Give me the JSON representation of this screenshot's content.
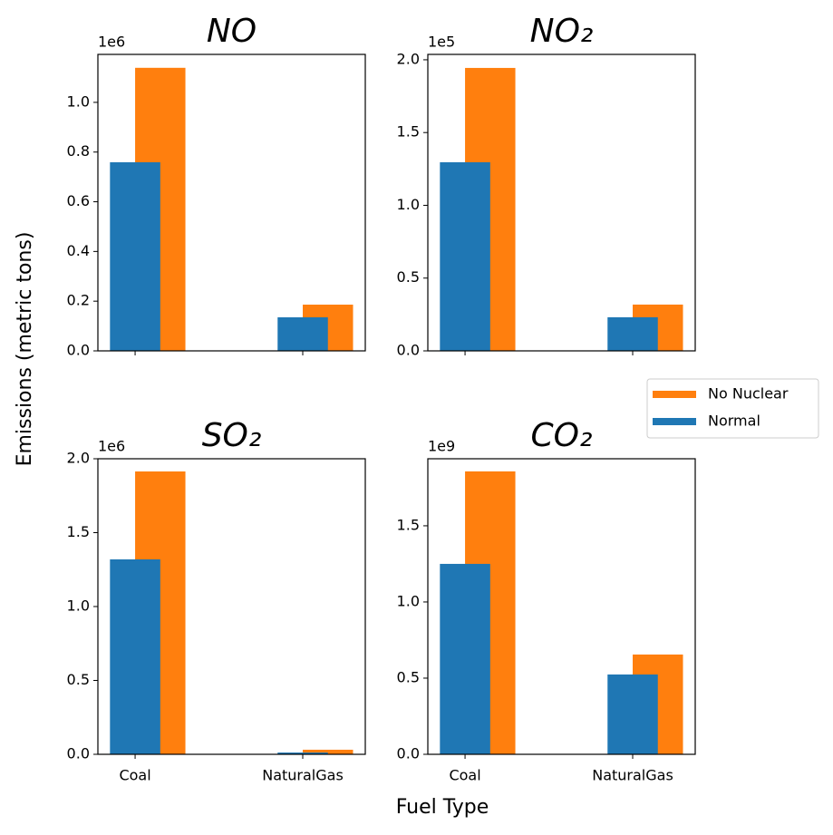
{
  "figure": {
    "xlabel": "Fuel Type",
    "ylabel": "Emissions (metric tons)"
  },
  "chart_data": [
    {
      "type": "bar",
      "title": "NO",
      "offset_label": "1e6",
      "categories": [
        "Coal",
        "NaturalGas"
      ],
      "series": [
        {
          "name": "No Nuclear",
          "color": "#ff7f0e",
          "values": [
            1.139,
            0.186
          ]
        },
        {
          "name": "Normal",
          "color": "#1f77b4",
          "values": [
            0.759,
            0.135
          ]
        }
      ],
      "ylim": [
        0,
        1.193
      ],
      "yticks": [
        {
          "value": 0,
          "label": "0.0"
        },
        0.2,
        0.4,
        0.6,
        0.8,
        {
          "value": 1,
          "label": "1.0"
        }
      ]
    },
    {
      "type": "bar",
      "title": "NO₂",
      "offset_label": "1e5",
      "categories": [
        "Coal",
        "NaturalGas"
      ],
      "series": [
        {
          "name": "No Nuclear",
          "color": "#ff7f0e",
          "values": [
            1.944,
            0.318
          ]
        },
        {
          "name": "Normal",
          "color": "#1f77b4",
          "values": [
            1.296,
            0.231
          ]
        }
      ],
      "ylim": [
        0,
        2.037
      ],
      "yticks": [
        {
          "value": 0,
          "label": "0.0"
        },
        0.5,
        {
          "value": 1,
          "label": "1.0"
        },
        1.5,
        {
          "value": 2,
          "label": "2.0"
        }
      ]
    },
    {
      "type": "bar",
      "title": "SO₂",
      "offset_label": "1e6",
      "categories": [
        "Coal",
        "NaturalGas"
      ],
      "series": [
        {
          "name": "No Nuclear",
          "color": "#ff7f0e",
          "values": [
            1.914,
            0.031
          ]
        },
        {
          "name": "Normal",
          "color": "#1f77b4",
          "values": [
            1.319,
            0.012
          ]
        }
      ],
      "ylim": [
        0,
        2.0
      ],
      "yticks": [
        {
          "value": 0,
          "label": "0.0"
        },
        0.5,
        {
          "value": 1,
          "label": "1.0"
        },
        1.5,
        {
          "value": 2,
          "label": "2.0"
        }
      ]
    },
    {
      "type": "bar",
      "title": "CO₂",
      "offset_label": "1e9",
      "categories": [
        "Coal",
        "NaturalGas"
      ],
      "series": [
        {
          "name": "No Nuclear",
          "color": "#ff7f0e",
          "values": [
            1.857,
            0.655
          ]
        },
        {
          "name": "Normal",
          "color": "#1f77b4",
          "values": [
            1.25,
            0.524
          ]
        }
      ],
      "ylim": [
        0,
        1.94
      ],
      "yticks": [
        {
          "value": 0,
          "label": "0.0"
        },
        0.5,
        {
          "value": 1,
          "label": "1.0"
        },
        1.5
      ]
    }
  ]
}
